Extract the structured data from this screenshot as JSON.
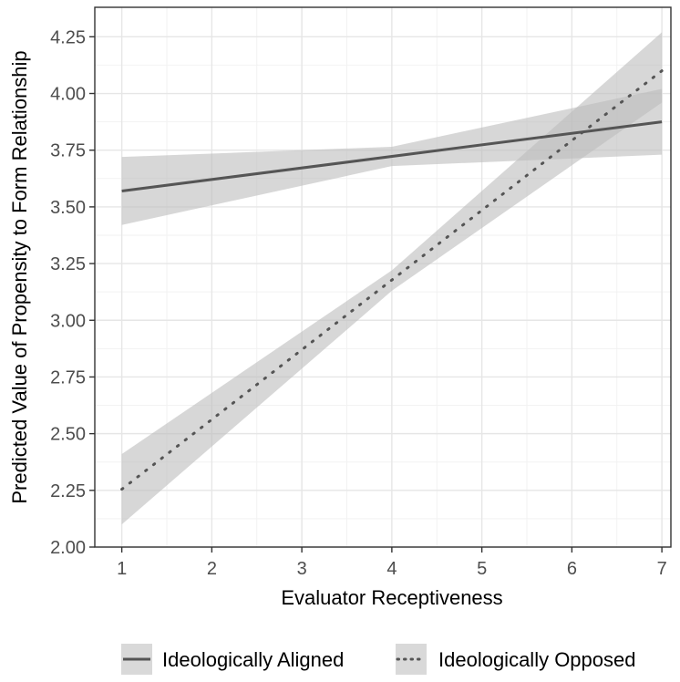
{
  "chart_data": {
    "type": "line",
    "title": "",
    "xlabel": "Evaluator Receptiveness",
    "ylabel": "Predicted Value of Propensity to Form Relationship",
    "xlim": [
      0.7,
      7.1
    ],
    "ylim": [
      2.0,
      4.38
    ],
    "xticks": [
      "1",
      "2",
      "3",
      "4",
      "5",
      "6",
      "7"
    ],
    "yticks": [
      "2.00",
      "2.25",
      "2.50",
      "2.75",
      "3.00",
      "3.25",
      "3.50",
      "3.75",
      "4.00",
      "4.25"
    ],
    "grid": true,
    "legend_position": "bottom",
    "series": [
      {
        "name": "Ideologically Aligned",
        "line_style": "solid",
        "color": "#555555",
        "band_color": "#bdbdbd",
        "x": [
          1,
          7
        ],
        "y": [
          3.57,
          3.875
        ],
        "band": [
          [
            1,
            3.42,
            3.72
          ],
          [
            4,
            3.68,
            3.765
          ],
          [
            7,
            3.73,
            4.02
          ]
        ]
      },
      {
        "name": "Ideologically Opposed",
        "line_style": "dotted",
        "color": "#555555",
        "band_color": "#bdbdbd",
        "x": [
          1,
          7
        ],
        "y": [
          2.255,
          4.1
        ],
        "band": [
          [
            1,
            2.1,
            2.41
          ],
          [
            4,
            3.13,
            3.22
          ],
          [
            7,
            3.96,
            4.27
          ]
        ]
      }
    ]
  }
}
